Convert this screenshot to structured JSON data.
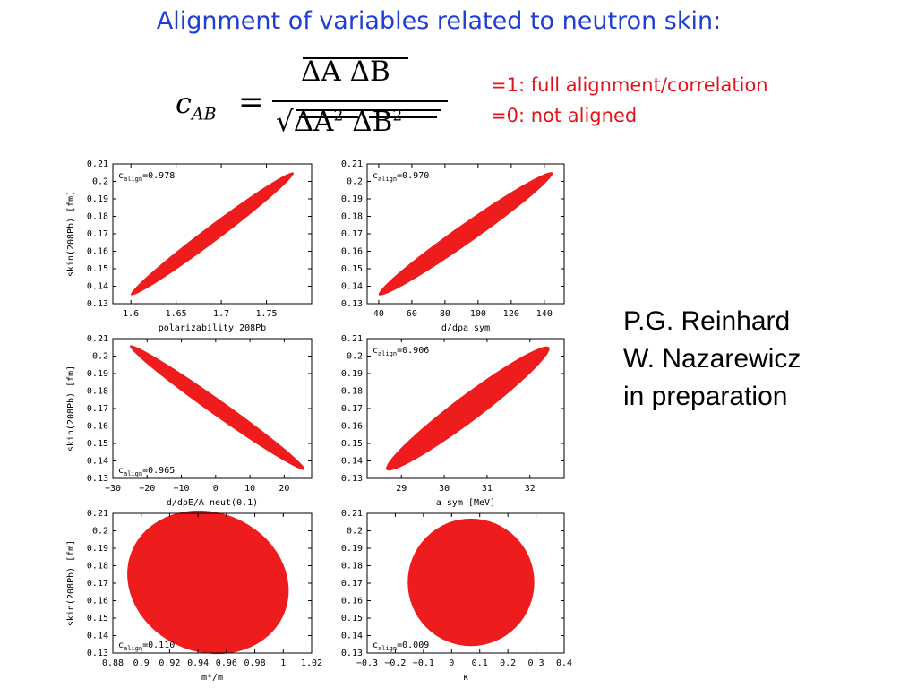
{
  "title": "Alignment of variables related to neutron skin:",
  "formula": {
    "lhs_symbol": "c",
    "lhs_sub": "AB",
    "equals": "=",
    "numerator": "ΔA ΔB",
    "denominator_sqrt": "√",
    "denominator_a": "ΔA",
    "denominator_b": "ΔB",
    "power": "2"
  },
  "notes": [
    "=1: full alignment/correlation",
    "=0: not aligned"
  ],
  "credits": [
    "P.G. Reinhard",
    "W. Nazarewicz",
    "in preparation"
  ],
  "colors": {
    "title": "#1f3fd4",
    "notes": "#e0151b",
    "ellipse": "#ee1c1c"
  },
  "chart_data": [
    {
      "type": "scatter",
      "shape": "ellipse",
      "c_align_label": "c",
      "c_align_sub": "align",
      "c_align_value": "=0.978",
      "ylabel": "skin(208Pb) [fm]",
      "xlabel": "polarizability 208Pb",
      "xlim": [
        1.58,
        1.8
      ],
      "ylim": [
        0.13,
        0.21
      ],
      "xticks": [
        "1.6",
        "1.65",
        "1.7",
        "1.75"
      ],
      "xtick_values": [
        1.6,
        1.65,
        1.7,
        1.75
      ],
      "yticks": [
        "0.21",
        "0.2",
        "0.19",
        "0.18",
        "0.17",
        "0.16",
        "0.15",
        "0.14",
        "0.13"
      ],
      "ellipse_endpoints": [
        [
          1.6,
          0.135
        ],
        [
          1.78,
          0.205
        ]
      ],
      "ellipse_minor_halfwidth": 0.0045
    },
    {
      "type": "scatter",
      "shape": "ellipse",
      "c_align_label": "c",
      "c_align_sub": "align",
      "c_align_value": "=0.970",
      "ylabel": "",
      "xlabel": "d/dρa sym",
      "xlim": [
        33,
        152
      ],
      "ylim": [
        0.13,
        0.21
      ],
      "xticks": [
        "40",
        "60",
        "80",
        "100",
        "120",
        "140"
      ],
      "xtick_values": [
        40,
        60,
        80,
        100,
        120,
        140
      ],
      "yticks": [
        "0.21",
        "0.2",
        "0.19",
        "0.18",
        "0.17",
        "0.16",
        "0.15",
        "0.14",
        "0.13"
      ],
      "ellipse_endpoints": [
        [
          40,
          0.135
        ],
        [
          145,
          0.205
        ]
      ],
      "ellipse_minor_halfwidth": 0.0055
    },
    {
      "type": "scatter",
      "shape": "ellipse",
      "c_align_label": "c",
      "c_align_sub": "align",
      "c_align_value": "=0.965",
      "ylabel": "skin(208Pb) [fm]",
      "xlabel": "d/dρE/A neut(0.1)",
      "xlim": [
        -30,
        28
      ],
      "ylim": [
        0.13,
        0.21
      ],
      "xticks": [
        "−30",
        "−20",
        "−10",
        "0",
        "10",
        "20"
      ],
      "xtick_values": [
        -30,
        -20,
        -10,
        0,
        10,
        20
      ],
      "yticks": [
        "0.21",
        "0.2",
        "0.19",
        "0.18",
        "0.17",
        "0.16",
        "0.15",
        "0.14",
        "0.13"
      ],
      "ellipse_endpoints": [
        [
          -25,
          0.206
        ],
        [
          26,
          0.135
        ]
      ],
      "ellipse_minor_halfwidth": 0.0045
    },
    {
      "type": "scatter",
      "shape": "ellipse",
      "c_align_label": "c",
      "c_align_sub": "align",
      "c_align_value": "=0.906",
      "ylabel": "",
      "xlabel": "a sym [MeV]",
      "xlim": [
        28.2,
        32.8
      ],
      "ylim": [
        0.13,
        0.21
      ],
      "xticks": [
        "29",
        "30",
        "31",
        "32"
      ],
      "xtick_values": [
        29,
        30,
        31,
        32
      ],
      "yticks": [
        "0.21",
        "0.2",
        "0.19",
        "0.18",
        "0.17",
        "0.16",
        "0.15",
        "0.14",
        "0.13"
      ],
      "ellipse_endpoints": [
        [
          28.65,
          0.135
        ],
        [
          32.45,
          0.205
        ]
      ],
      "ellipse_minor_halfwidth": 0.0075
    },
    {
      "type": "scatter",
      "shape": "ellipse",
      "c_align_label": "c",
      "c_align_sub": "align",
      "c_align_value": "=0.110",
      "ylabel": "skin(208Pb) [fm]",
      "xlabel": "m*/m",
      "xlim": [
        0.88,
        1.02
      ],
      "ylim": [
        0.13,
        0.21
      ],
      "xticks": [
        "0.88",
        "0.9",
        "0.92",
        "0.94",
        "0.96",
        "0.98",
        "1",
        "1.02"
      ],
      "xtick_values": [
        0.88,
        0.9,
        0.92,
        0.94,
        0.96,
        0.98,
        1.0,
        1.02
      ],
      "yticks": [
        "0.21",
        "0.2",
        "0.19",
        "0.18",
        "0.17",
        "0.16",
        "0.15",
        "0.14",
        "0.13"
      ],
      "ellipse_center": [
        0.947,
        0.1705
      ],
      "ellipse_rx_data": 0.058,
      "ellipse_ry_data": 0.04,
      "ellipse_rotation_deg": 22
    },
    {
      "type": "scatter",
      "shape": "ellipse",
      "c_align_label": "c",
      "c_align_sub": "align",
      "c_align_value": "=0.009",
      "ylabel": "",
      "xlabel": "κ",
      "xlim": [
        -0.3,
        0.4
      ],
      "ylim": [
        0.13,
        0.21
      ],
      "xticks": [
        "−0.3",
        "−0.2",
        "−0.1",
        "0",
        "0.1",
        "0.2",
        "0.3",
        "0.4"
      ],
      "xtick_values": [
        -0.3,
        -0.2,
        -0.1,
        0,
        0.1,
        0.2,
        0.3,
        0.4
      ],
      "yticks": [
        "0.21",
        "0.2",
        "0.19",
        "0.18",
        "0.17",
        "0.16",
        "0.15",
        "0.14",
        "0.13"
      ],
      "ellipse_center": [
        0.069,
        0.1705
      ],
      "ellipse_rx_data": 0.225,
      "ellipse_ry_data": 0.0365,
      "ellipse_rotation_deg": 0
    }
  ]
}
